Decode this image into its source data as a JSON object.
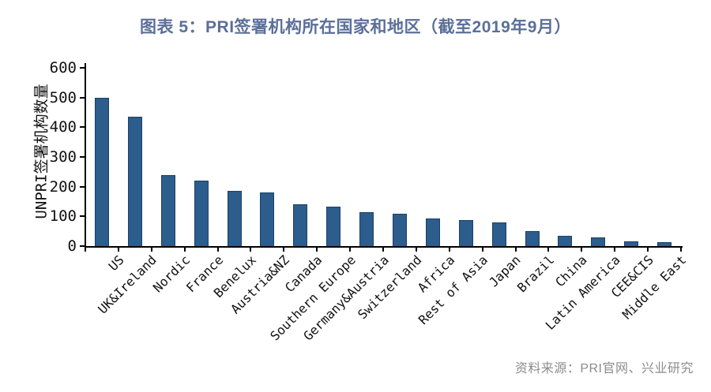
{
  "title": "图表 5：PRI签署机构所在国家和地区（截至2019年9月）",
  "source": "资料来源：PRI官网、兴业研究",
  "colors": {
    "title_text": "#5b6f99",
    "source_text": "#8c8c8c",
    "bar_fill": "#2c5d8c",
    "bar_border": "#1d4066",
    "axis": "#000000"
  },
  "chart_data": {
    "type": "bar",
    "title": "图表 5：PRI签署机构所在国家和地区（截至2019年9月）",
    "xlabel": "",
    "ylabel": "UNPRI签署机构数量",
    "categories": [
      "US",
      "UK&Ireland",
      "Nordic",
      "France",
      "Benelux",
      "Austria&NZ",
      "Canada",
      "Southern Europe",
      "Germany&Austria",
      "Switzerland",
      "Africa",
      "Rest of Asia",
      "Japan",
      "Brazil",
      "China",
      "Latin America",
      "CEE&CIS",
      "Middle East"
    ],
    "values": [
      500,
      435,
      240,
      220,
      186,
      180,
      142,
      132,
      115,
      110,
      94,
      87,
      79,
      50,
      34,
      28,
      17,
      12
    ],
    "ylim": [
      0,
      600
    ],
    "yticks": [
      0,
      100,
      200,
      300,
      400,
      500,
      600
    ],
    "grid": false,
    "legend": null,
    "x_tick_style": "between-categories",
    "x_label_rotation_deg": 45
  }
}
